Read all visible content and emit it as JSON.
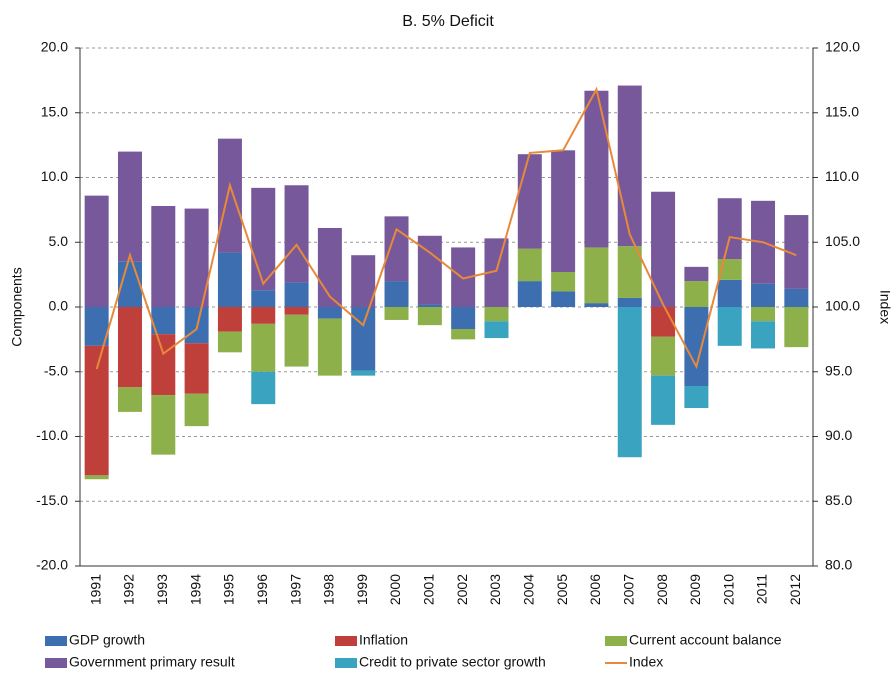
{
  "chart_data": {
    "type": "bar",
    "title": "B. 5% Deficit",
    "y_label": "Components",
    "y2_label": "Index",
    "categories": [
      "1991",
      "1992",
      "1993",
      "1994",
      "1995",
      "1996",
      "1997",
      "1998",
      "1999",
      "2000",
      "2001",
      "2002",
      "2003",
      "2004",
      "2005",
      "2006",
      "2007",
      "2008",
      "2009",
      "2010",
      "2011",
      "2012"
    ],
    "ylim": [
      -20,
      20
    ],
    "yticks": [
      {
        "value": -20,
        "label": "-20.0"
      },
      {
        "value": -15,
        "label": "-15.0"
      },
      {
        "value": -10,
        "label": "-10.0"
      },
      {
        "value": -5,
        "label": "-5.0"
      },
      {
        "value": 0,
        "label": "0.0"
      },
      {
        "value": 5,
        "label": "5.0"
      },
      {
        "value": 10,
        "label": "10.0"
      },
      {
        "value": 15,
        "label": "15.0"
      },
      {
        "value": 20,
        "label": "20.0"
      }
    ],
    "y2lim": [
      80,
      120
    ],
    "y2ticks": [
      {
        "value": 80,
        "label": "80.0"
      },
      {
        "value": 85,
        "label": "85.0"
      },
      {
        "value": 90,
        "label": "90.0"
      },
      {
        "value": 95,
        "label": "95.0"
      },
      {
        "value": 100,
        "label": "100.0"
      },
      {
        "value": 105,
        "label": "105.0"
      },
      {
        "value": 110,
        "label": "110.0"
      },
      {
        "value": 115,
        "label": "115.0"
      },
      {
        "value": 120,
        "label": "120.0"
      }
    ],
    "grid": true,
    "series": [
      {
        "name": "GDP growth",
        "color": "#3d6fb0",
        "type": "bar",
        "values": [
          -3,
          3.5,
          -2.1,
          -2.8,
          4.2,
          1.3,
          1.9,
          -0.9,
          -4.9,
          2.0,
          0.2,
          -1.7,
          0,
          2.0,
          1.2,
          0.3,
          0.7,
          0,
          -6.1,
          2.1,
          1.8,
          1.4
        ]
      },
      {
        "name": "Inflation",
        "color": "#bf3f3a",
        "type": "bar",
        "values": [
          -10,
          -6.2,
          -4.7,
          -3.9,
          -1.9,
          -1.3,
          -0.6,
          0,
          0,
          0,
          0,
          0,
          0,
          0,
          0,
          0,
          0,
          -2.3,
          0,
          0,
          0,
          0
        ]
      },
      {
        "name": "Current account balance",
        "color": "#8db04b",
        "type": "bar",
        "values": [
          -0.3,
          -1.9,
          -4.6,
          -2.5,
          -1.6,
          -3.7,
          -4.0,
          -4.4,
          0,
          -1.0,
          -1.4,
          -0.8,
          -1.1,
          2.5,
          1.5,
          4.3,
          4.0,
          -3.0,
          2.0,
          1.6,
          -1.1,
          -3.1
        ]
      },
      {
        "name": "Government primary result",
        "color": "#77589a",
        "type": "bar",
        "values": [
          8.6,
          8.5,
          7.8,
          7.6,
          8.8,
          7.9,
          7.5,
          6.1,
          4.0,
          5.0,
          5.3,
          4.6,
          5.3,
          7.3,
          9.4,
          12.1,
          12.4,
          8.9,
          1.1,
          4.7,
          6.4,
          5.7
        ]
      },
      {
        "name": "Credit to private sector growth",
        "color": "#3aa3bf",
        "type": "bar",
        "values": [
          0,
          0,
          0,
          0,
          0,
          -2.5,
          0,
          0,
          -0.4,
          0,
          0,
          0,
          -1.3,
          0,
          0,
          0,
          -11.6,
          -3.8,
          -1.7,
          -3.0,
          -2.1,
          0
        ]
      },
      {
        "name": "Index",
        "color": "#e8893a",
        "type": "line",
        "axis": "y2",
        "values": [
          95.2,
          104,
          96.4,
          98.3,
          109.4,
          101.8,
          104.8,
          100.8,
          98.6,
          106,
          104.2,
          102.2,
          102.8,
          111.9,
          112.1,
          116.8,
          105.6,
          100.2,
          95.4,
          105.4,
          105,
          104
        ]
      }
    ]
  }
}
